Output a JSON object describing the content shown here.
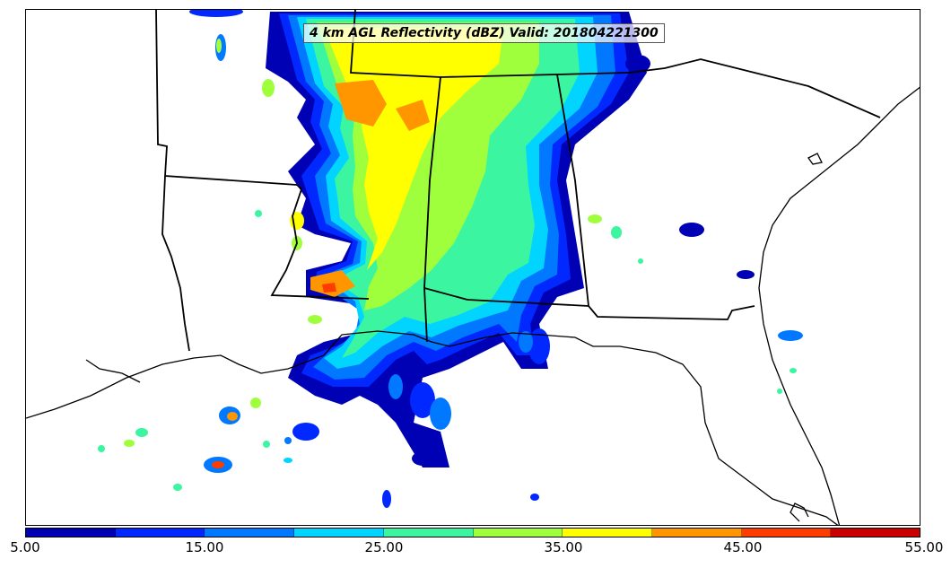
{
  "map": {
    "title": "4 km AGL Reflectivity (dBZ) Valid: 201804221300"
  },
  "colorbar": {
    "colors": [
      "#0000b4",
      "#0028ff",
      "#0078ff",
      "#00d4ff",
      "#3cf5a0",
      "#a0ff3c",
      "#ffff00",
      "#ff9600",
      "#ff3c00",
      "#c80000"
    ],
    "ticks": [
      "5.00",
      "15.00",
      "25.00",
      "35.00",
      "45.00",
      "55.00"
    ]
  }
}
